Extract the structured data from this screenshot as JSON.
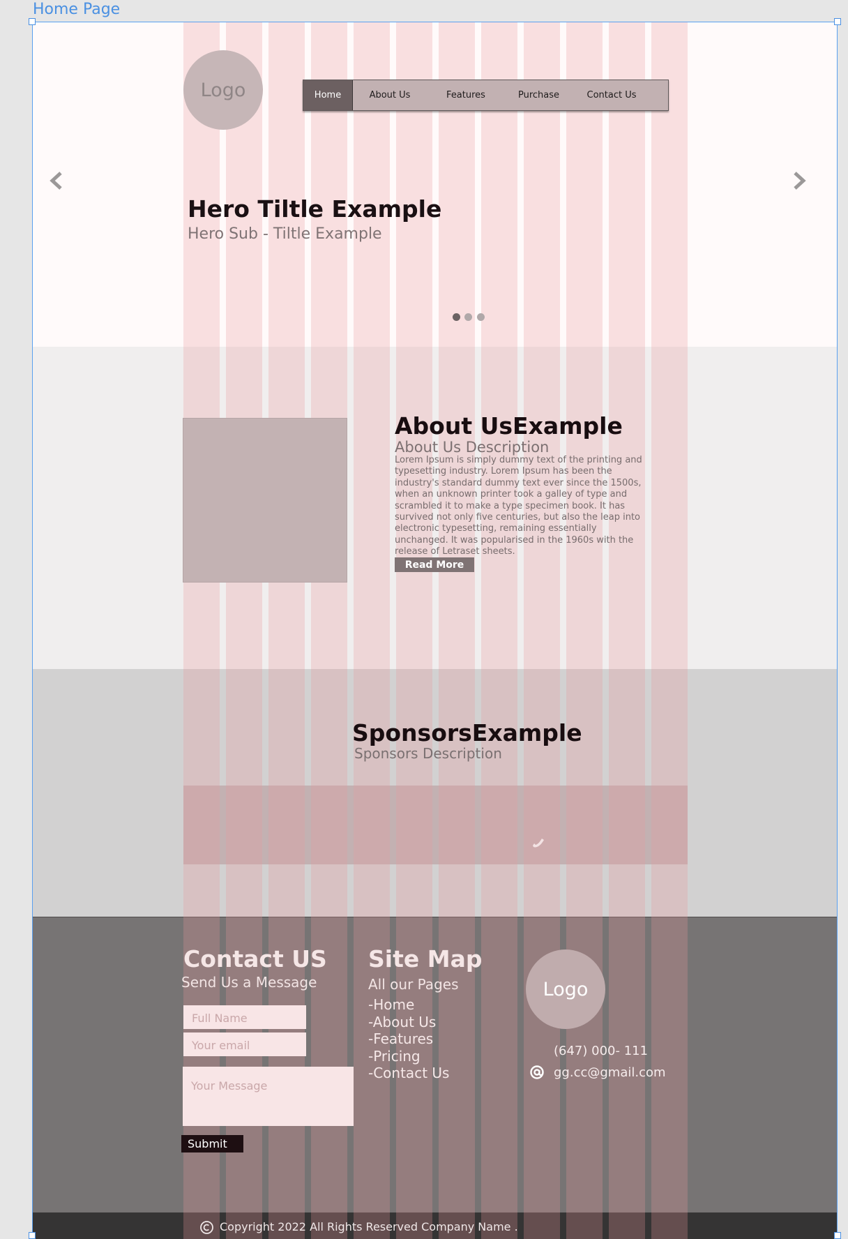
{
  "frame": {
    "label": "Home Page"
  },
  "header": {
    "logo": "Logo",
    "nav": [
      {
        "label": "Home",
        "active": true
      },
      {
        "label": "About Us",
        "active": false
      },
      {
        "label": "Features",
        "active": false
      },
      {
        "label": "Purchase",
        "active": false
      },
      {
        "label": "Contact Us",
        "active": false
      }
    ]
  },
  "hero": {
    "title": "Hero Tiltle Example",
    "subtitle": "Hero Sub - Tiltle Example",
    "prev_icon": "chevron-left-icon",
    "next_icon": "chevron-right-icon",
    "slides": 3,
    "active_slide": 1
  },
  "about": {
    "title": "About UsExample",
    "subtitle": "About Us Description",
    "body": "Lorem Ipsum is simply dummy text of the printing and typesetting industry. Lorem Ipsum has been the industry's standard dummy text ever since the 1500s, when an unknown printer took a galley of type and scrambled it to make a type specimen book. It has survived not only five centuries, but also the leap into electronic typesetting, remaining essentially unchanged. It was popularised in the 1960s with the release of Letraset sheets.",
    "button": "Read More"
  },
  "sponsors": {
    "title": "SponsorsExample",
    "subtitle": "Sponsors Description",
    "icon": "phone-icon"
  },
  "footer": {
    "contact": {
      "title": "Contact US",
      "subtitle": "Send Us a Message",
      "name_placeholder": "Full Name",
      "email_placeholder": "Your email",
      "message_placeholder": "Your Message",
      "submit": "Submit"
    },
    "sitemap": {
      "title": "Site Map",
      "subtitle": "All our Pages",
      "links": [
        "-Home",
        "-About Us",
        "-Features",
        "-Pricing",
        "-Contact Us"
      ]
    },
    "info": {
      "logo": "Logo",
      "phone": "(647) 000- 111",
      "email": "gg.cc@gmail.com",
      "email_icon": "at-icon"
    },
    "copyright": "Copyright 2022 All Rights Reserved Company Name ."
  },
  "colors": {
    "grid_overlay": "#e8989d",
    "hero_bg": "#fffafa",
    "about_bg": "#f0eeee",
    "sponsors_bg": "#d2d1d1",
    "footer_bg": "#777474",
    "nav_active": "#6c6061",
    "selection": "#4a90e2"
  }
}
